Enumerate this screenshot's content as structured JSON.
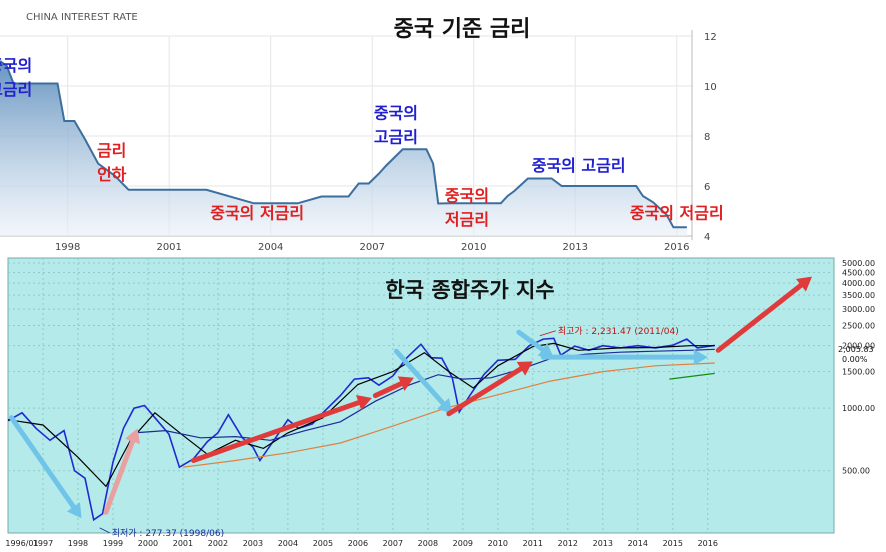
{
  "chart_data": [
    {
      "type": "area",
      "source_label": "CHINA INTEREST RATE",
      "title": "중국 기준 금리",
      "ylim": [
        4,
        12
      ],
      "y_ticks": [
        "12",
        "10",
        "8",
        "6",
        "4"
      ],
      "x_tick_labels": [
        "1998",
        "2001",
        "2004",
        "2007",
        "2010",
        "2013",
        "2016"
      ],
      "x": [
        1996.0,
        1996.2,
        1996.4,
        1996.6,
        1997.7,
        1997.9,
        1998.2,
        1998.5,
        1998.9,
        1999.4,
        1999.8,
        2001.0,
        2002.1,
        2003.5,
        2004.8,
        2005.5,
        2006.3,
        2006.6,
        2006.9,
        2007.2,
        2007.4,
        2007.7,
        2007.9,
        2008.6,
        2008.8,
        2008.95,
        2009.3,
        2010.8,
        2011.0,
        2011.2,
        2011.6,
        2012.3,
        2012.6,
        2014.8,
        2015.0,
        2015.3,
        2015.5,
        2015.7,
        2015.9,
        2016.3
      ],
      "values": [
        11.0,
        10.8,
        10.1,
        10.1,
        10.1,
        8.6,
        8.6,
        7.9,
        6.9,
        6.4,
        5.85,
        5.85,
        5.85,
        5.31,
        5.31,
        5.58,
        5.58,
        6.1,
        6.1,
        6.5,
        6.8,
        7.2,
        7.47,
        7.47,
        6.9,
        5.3,
        5.31,
        5.31,
        5.6,
        5.8,
        6.3,
        6.3,
        6.0,
        6.0,
        5.6,
        5.35,
        5.1,
        4.85,
        4.35,
        4.35
      ],
      "annotations": [
        {
          "text": "중국의\n고금리",
          "color": "#2020d0",
          "x": 1996.3,
          "y": 10.6
        },
        {
          "text": "금리\n인하",
          "color": "#e02020",
          "x": 1999.3,
          "y": 7.2
        },
        {
          "text": "중국의 저금리",
          "color": "#e02020",
          "x": 2003.6,
          "y": 4.7
        },
        {
          "text": "중국의\n고금리",
          "color": "#2020d0",
          "x": 2007.7,
          "y": 8.7
        },
        {
          "text": "중국의\n저금리",
          "color": "#e02020",
          "x": 2009.8,
          "y": 5.4
        },
        {
          "text": "중국의 고금리",
          "color": "#2020d0",
          "x": 2013.1,
          "y": 6.6
        },
        {
          "text": "중국의 저금리",
          "color": "#e02020",
          "x": 2016.0,
          "y": 4.7
        }
      ]
    },
    {
      "type": "line",
      "title": "한국 종합주가 지수",
      "y_scale": "log",
      "ylim": [
        280,
        5000
      ],
      "y_ticks": [
        "5000.00",
        "4500.00",
        "4000.00",
        "3500.00",
        "3000.00",
        "2500.00",
        "2000.00",
        "1500.00",
        "1000.00",
        "500.00"
      ],
      "last_value_label": "2,005.83",
      "change_label": "0.00%",
      "x_tick_labels": [
        "1996/01",
        "1997",
        "1998",
        "1999",
        "2000",
        "2001",
        "2002",
        "2003",
        "2004",
        "2005",
        "2006",
        "2007",
        "2008",
        "2009",
        "2010",
        "2011",
        "2012",
        "2013",
        "2014",
        "2015",
        "2016"
      ],
      "series": [
        {
          "color": "#1e2ad0",
          "x": [
            1996.0,
            1996.4,
            1996.8,
            1997.2,
            1997.6,
            1997.9,
            1998.2,
            1998.45,
            1998.7,
            1999.0,
            1999.3,
            1999.6,
            1999.9,
            2000.2,
            2000.6,
            2000.9,
            2001.3,
            2001.7,
            2002.0,
            2002.3,
            2002.7,
            2003.0,
            2003.2,
            2003.6,
            2004.0,
            2004.3,
            2004.7,
            2005.0,
            2005.5,
            2005.9,
            2006.3,
            2006.6,
            2007.0,
            2007.4,
            2007.8,
            2008.1,
            2008.4,
            2008.7,
            2008.9,
            2009.2,
            2009.6,
            2010.0,
            2010.5,
            2010.9,
            2011.3,
            2011.6,
            2011.8,
            2012.2,
            2012.6,
            2013.0,
            2013.5,
            2014.0,
            2014.5,
            2015.0,
            2015.4,
            2015.7,
            2016.2
          ],
          "values": [
            870,
            950,
            800,
            700,
            780,
            500,
            460,
            290,
            310,
            550,
            800,
            1000,
            1030,
            900,
            750,
            520,
            570,
            690,
            760,
            930,
            720,
            650,
            560,
            700,
            880,
            800,
            840,
            950,
            1150,
            1380,
            1400,
            1290,
            1430,
            1750,
            2030,
            1750,
            1740,
            1400,
            960,
            1150,
            1450,
            1700,
            1720,
            2000,
            2150,
            2170,
            1800,
            1990,
            1900,
            2000,
            1950,
            2000,
            1950,
            2010,
            2150,
            1950,
            2006
          ]
        },
        {
          "color": "#000000",
          "x": [
            1996.0,
            1997.0,
            1998.0,
            1998.8,
            1999.5,
            2000.2,
            2001.0,
            2001.7,
            2002.5,
            2003.3,
            2004.0,
            2005.0,
            2006.0,
            2007.0,
            2007.9,
            2008.6,
            2009.3,
            2010.0,
            2011.0,
            2011.6,
            2012.3,
            2013.5,
            2014.5,
            2015.5,
            2016.2
          ],
          "values": [
            880,
            830,
            580,
            420,
            700,
            950,
            740,
            600,
            700,
            640,
            760,
            900,
            1300,
            1500,
            1850,
            1500,
            1250,
            1600,
            1980,
            2050,
            1900,
            1950,
            1960,
            2000,
            2000
          ]
        },
        {
          "color": "#1a2a99",
          "x": [
            1999.6,
            2000.5,
            2001.5,
            2002.5,
            2003.5,
            2004.5,
            2005.5,
            2006.5,
            2007.5,
            2008.3,
            2009.0,
            2009.8,
            2010.6,
            2011.5,
            2012.5,
            2013.5,
            2014.5,
            2015.5,
            2016.2
          ],
          "values": [
            760,
            780,
            720,
            730,
            700,
            780,
            860,
            1080,
            1300,
            1450,
            1380,
            1400,
            1530,
            1730,
            1820,
            1860,
            1880,
            1900,
            1920
          ]
        },
        {
          "color": "#e08040",
          "x": [
            2001.0,
            2002.5,
            2004.0,
            2005.5,
            2007.0,
            2008.5,
            2010.0,
            2011.5,
            2013.0,
            2014.5,
            2016.2
          ],
          "values": [
            520,
            560,
            610,
            680,
            820,
            1000,
            1160,
            1350,
            1500,
            1600,
            1650
          ]
        },
        {
          "color": "#109010",
          "x": [
            2014.9,
            2016.2
          ],
          "values": [
            1380,
            1470
          ]
        }
      ],
      "annotations": [
        {
          "text": "최고가 : 2,231.47 (2011/04)",
          "color": "#c01010",
          "x": 2011.2,
          "y": 2231.47
        },
        {
          "text": "최저가 : 277.37 (1998/06)",
          "color": "#1a2a99",
          "x": 1998.45,
          "y": 277.37
        }
      ],
      "trend_arrows": [
        {
          "color": "#6fc4e8",
          "from": [
            1996.1,
            900
          ],
          "to": [
            1998.1,
            295
          ]
        },
        {
          "color": "#e8a0a0",
          "from": [
            1998.8,
            315
          ],
          "to": [
            1999.7,
            800
          ]
        },
        {
          "color": "#e03a3a",
          "from": [
            2001.3,
            560
          ],
          "to": [
            2006.4,
            1120
          ]
        },
        {
          "color": "#e03a3a",
          "from": [
            2006.5,
            1150
          ],
          "to": [
            2007.6,
            1400
          ]
        },
        {
          "color": "#6fc4e8",
          "from": [
            2007.1,
            1880
          ],
          "to": [
            2008.7,
            940
          ]
        },
        {
          "color": "#e03a3a",
          "from": [
            2008.6,
            940
          ],
          "to": [
            2011.0,
            1680
          ]
        },
        {
          "color": "#6fc4e8",
          "from": [
            2010.6,
            2320
          ],
          "to": [
            2011.6,
            1750
          ]
        },
        {
          "color": "#6fc4e8",
          "from": [
            2011.3,
            1760
          ],
          "to": [
            2016.0,
            1760
          ]
        },
        {
          "color": "#e03a3a",
          "from": [
            2016.3,
            1900
          ],
          "to": [
            2019.0,
            4300
          ]
        }
      ]
    }
  ]
}
